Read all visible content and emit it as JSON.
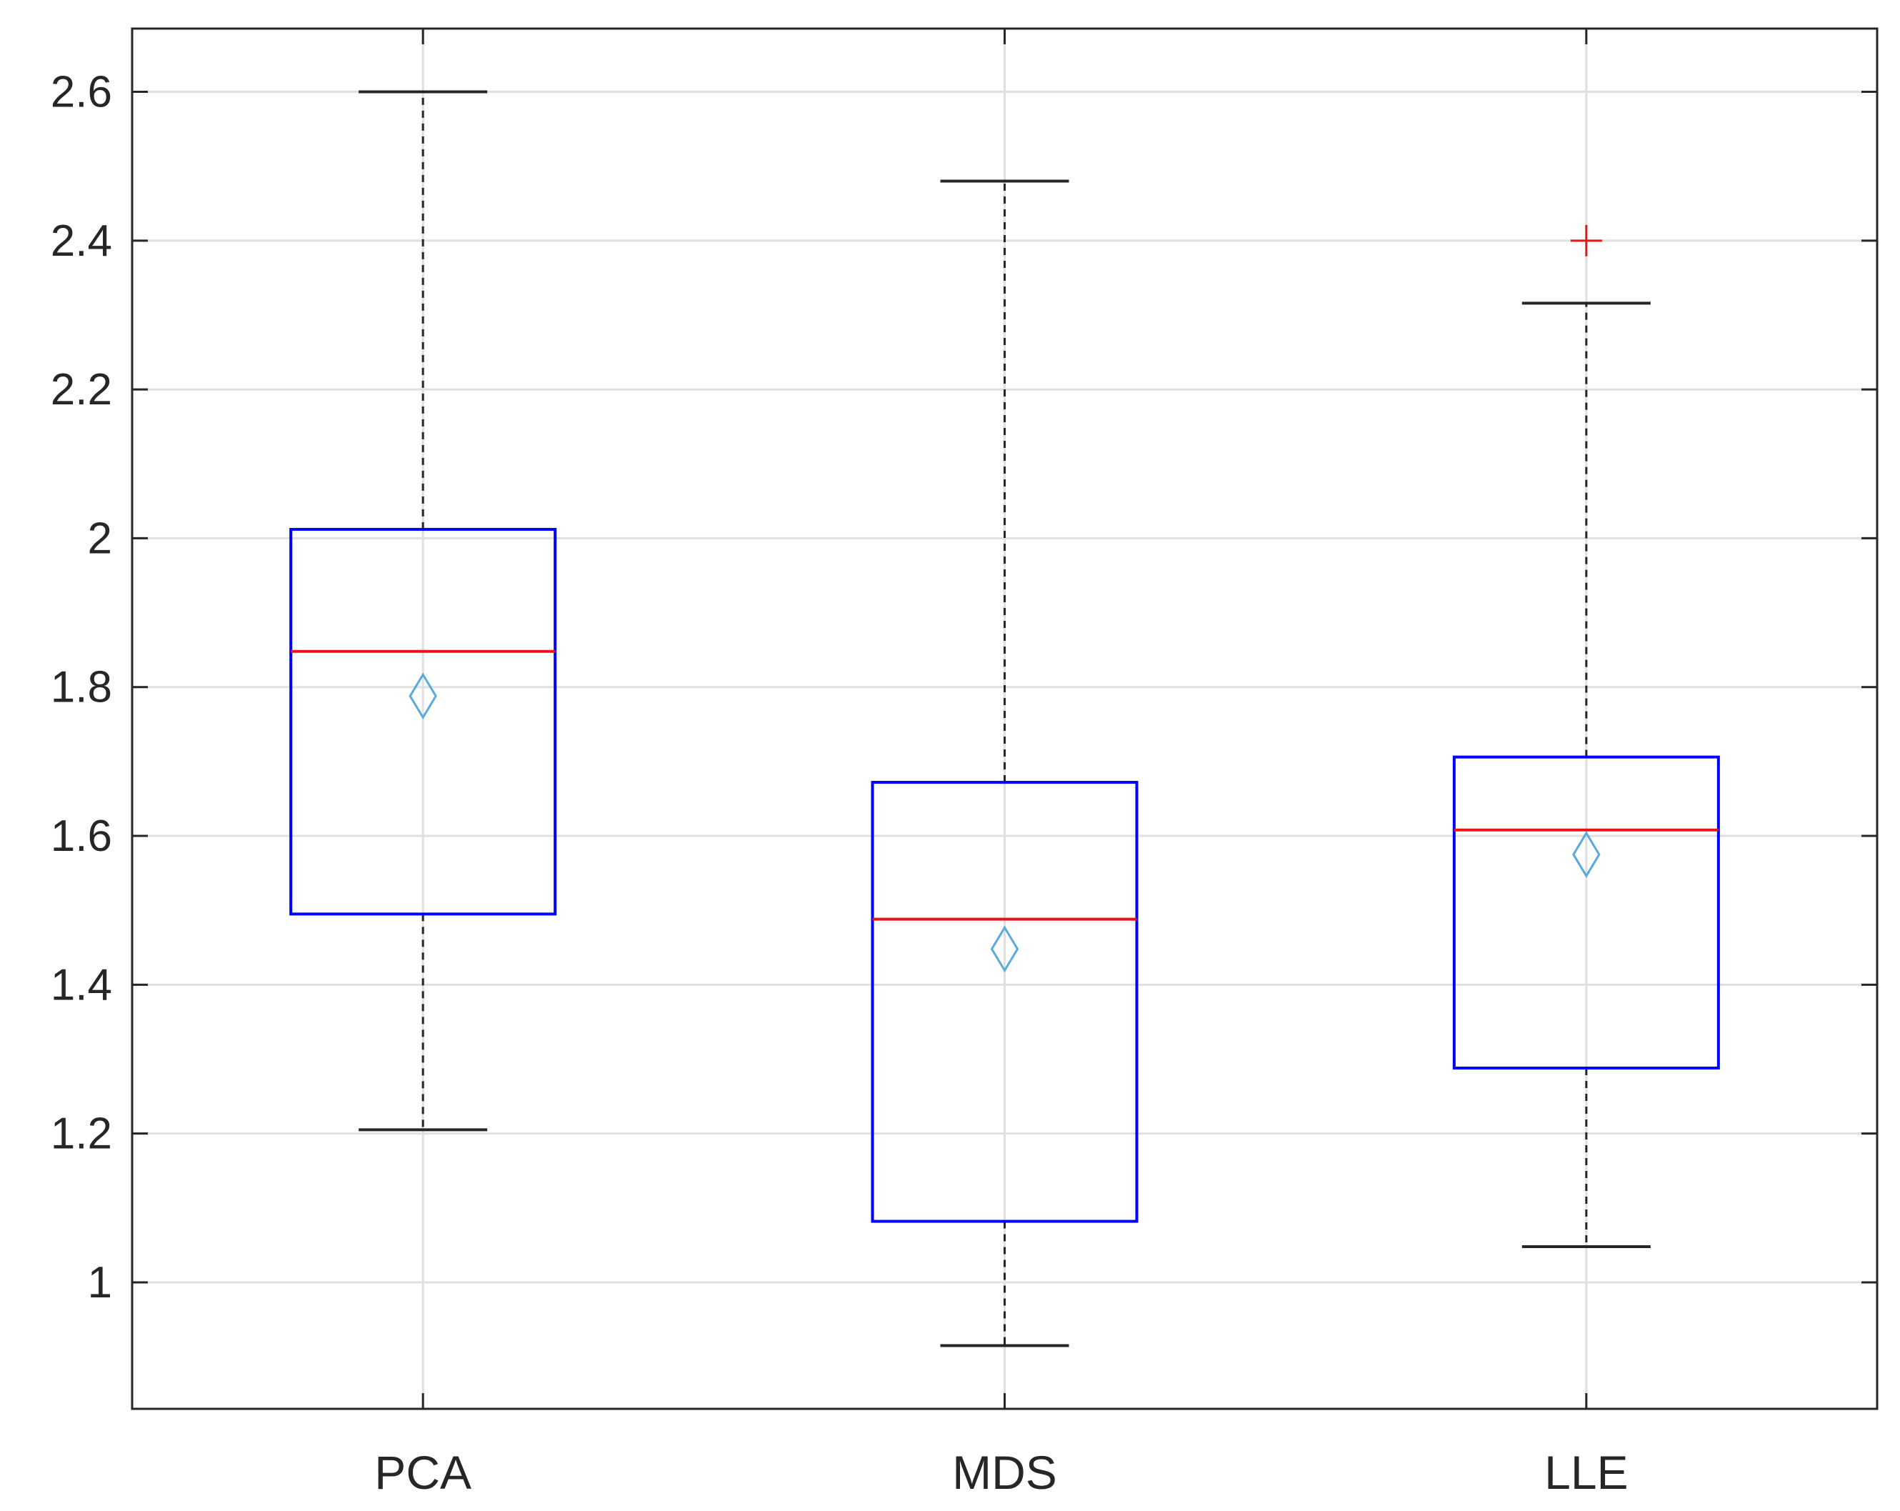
{
  "chart_data": {
    "type": "box",
    "title": "",
    "xlabel": "",
    "ylabel": "",
    "ylim": [
      0.83,
      2.685
    ],
    "yticks": [
      1,
      1.2,
      1.4,
      1.6,
      1.8,
      2,
      2.2,
      2.4,
      2.6
    ],
    "ytick_labels": [
      "1",
      "1.2",
      "1.4",
      "1.6",
      "1.8",
      "2",
      "2.2",
      "2.4",
      "2.6"
    ],
    "grid": true,
    "categories": [
      "PCA",
      "MDS",
      "LLE"
    ],
    "boxes": [
      {
        "name": "PCA",
        "whisker_low": 1.205,
        "q1": 1.495,
        "median": 1.848,
        "q3": 2.012,
        "whisker_high": 2.6,
        "mean": 1.788,
        "outliers": []
      },
      {
        "name": "MDS",
        "whisker_low": 0.915,
        "q1": 1.082,
        "median": 1.488,
        "q3": 1.672,
        "whisker_high": 2.48,
        "mean": 1.448,
        "outliers": []
      },
      {
        "name": "LLE",
        "whisker_low": 1.048,
        "q1": 1.288,
        "median": 1.608,
        "q3": 1.706,
        "whisker_high": 2.316,
        "mean": 1.575,
        "outliers": [
          2.4
        ]
      }
    ],
    "colors": {
      "box": "#0000ff",
      "median": "#e8141b",
      "whisker": "#262626",
      "mean_marker": "#5aaadc",
      "outlier": "#e8141b",
      "grid": "#e0e0e0",
      "axis": "#262626"
    }
  }
}
